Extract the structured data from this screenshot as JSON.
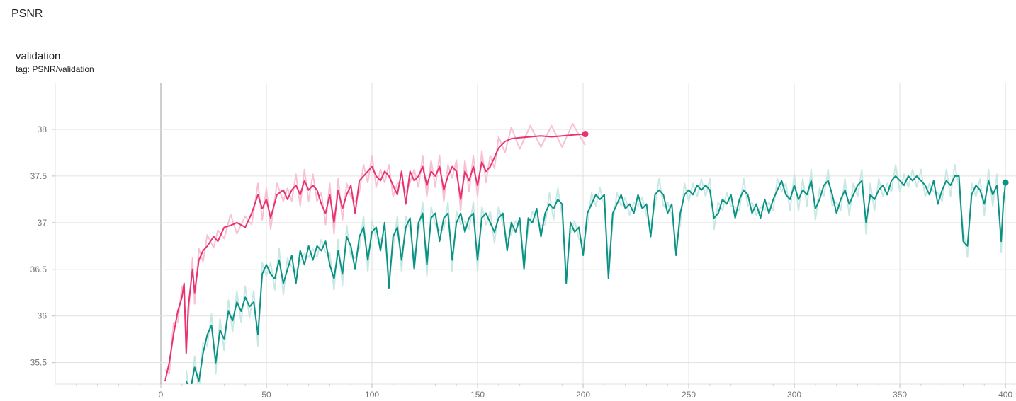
{
  "section": {
    "title": "PSNR"
  },
  "card": {
    "title": "validation",
    "tag": "tag: PSNR/validation"
  },
  "colors": {
    "run1": "#e8336f",
    "run1_raw": "#f7c1d3",
    "run2": "#0a9384",
    "run2_raw": "#c7e8e3",
    "grid": "#e0e0e0",
    "zero_line": "#9e9e9e"
  },
  "chart_data": {
    "type": "line",
    "title": "validation",
    "subtitle": "tag: PSNR/validation",
    "xlabel": "",
    "ylabel": "",
    "xlim": [
      -50,
      405
    ],
    "ylim": [
      35.27,
      38.5
    ],
    "x_ticks": [
      0,
      50,
      100,
      150,
      200,
      250,
      300,
      350,
      400
    ],
    "y_ticks": [
      35.5,
      36,
      36.5,
      37,
      37.5,
      38
    ],
    "x_tick_labels": [
      "0",
      "50",
      "100",
      "150",
      "200",
      "250",
      "300",
      "350",
      "400"
    ],
    "y_tick_labels": [
      "35.5",
      "36",
      "36.5",
      "37",
      "37.5",
      "38"
    ],
    "grid": true,
    "series": [
      {
        "color": "#e8336f",
        "raw_color": "#f7c1d3",
        "points": [
          [
            2,
            35.3
          ],
          [
            4,
            35.5
          ],
          [
            6,
            35.8
          ],
          [
            8,
            36.05
          ],
          [
            10,
            36.2
          ],
          [
            11,
            36.35
          ],
          [
            12,
            35.6
          ],
          [
            13,
            36.1
          ],
          [
            15,
            36.5
          ],
          [
            16,
            36.25
          ],
          [
            18,
            36.6
          ],
          [
            20,
            36.7
          ],
          [
            22,
            36.75
          ],
          [
            25,
            36.85
          ],
          [
            27,
            36.8
          ],
          [
            30,
            36.95
          ],
          [
            33,
            36.97
          ],
          [
            36,
            37.0
          ],
          [
            40,
            36.95
          ],
          [
            43,
            37.1
          ],
          [
            46,
            37.3
          ],
          [
            48,
            37.15
          ],
          [
            50,
            37.25
          ],
          [
            52,
            37.05
          ],
          [
            55,
            37.3
          ],
          [
            58,
            37.35
          ],
          [
            60,
            37.25
          ],
          [
            62,
            37.35
          ],
          [
            64,
            37.4
          ],
          [
            66,
            37.3
          ],
          [
            68,
            37.45
          ],
          [
            70,
            37.35
          ],
          [
            72,
            37.4
          ],
          [
            74,
            37.35
          ],
          [
            76,
            37.2
          ],
          [
            78,
            37.1
          ],
          [
            80,
            37.3
          ],
          [
            82,
            37.0
          ],
          [
            84,
            37.35
          ],
          [
            86,
            37.15
          ],
          [
            88,
            37.3
          ],
          [
            90,
            37.4
          ],
          [
            92,
            37.1
          ],
          [
            94,
            37.45
          ],
          [
            96,
            37.5
          ],
          [
            98,
            37.55
          ],
          [
            100,
            37.6
          ],
          [
            102,
            37.5
          ],
          [
            104,
            37.45
          ],
          [
            106,
            37.55
          ],
          [
            108,
            37.5
          ],
          [
            110,
            37.4
          ],
          [
            112,
            37.3
          ],
          [
            114,
            37.55
          ],
          [
            116,
            37.2
          ],
          [
            118,
            37.55
          ],
          [
            120,
            37.45
          ],
          [
            122,
            37.5
          ],
          [
            124,
            37.6
          ],
          [
            126,
            37.4
          ],
          [
            128,
            37.55
          ],
          [
            130,
            37.5
          ],
          [
            132,
            37.6
          ],
          [
            134,
            37.35
          ],
          [
            136,
            37.5
          ],
          [
            138,
            37.6
          ],
          [
            140,
            37.55
          ],
          [
            142,
            37.25
          ],
          [
            144,
            37.55
          ],
          [
            146,
            37.45
          ],
          [
            148,
            37.6
          ],
          [
            150,
            37.4
          ],
          [
            152,
            37.65
          ],
          [
            154,
            37.55
          ],
          [
            156,
            37.6
          ],
          [
            158,
            37.7
          ],
          [
            160,
            37.8
          ],
          [
            163,
            37.87
          ],
          [
            166,
            37.9
          ],
          [
            170,
            37.91
          ],
          [
            175,
            37.92
          ],
          [
            180,
            37.93
          ],
          [
            185,
            37.92
          ],
          [
            190,
            37.93
          ],
          [
            195,
            37.94
          ],
          [
            201,
            37.95
          ]
        ]
      },
      {
        "color": "#0a9384",
        "raw_color": "#c7e8e3",
        "points": [
          [
            12,
            35.3
          ],
          [
            14,
            35.2
          ],
          [
            16,
            35.45
          ],
          [
            18,
            35.3
          ],
          [
            20,
            35.6
          ],
          [
            22,
            35.8
          ],
          [
            24,
            35.9
          ],
          [
            26,
            35.5
          ],
          [
            28,
            35.85
          ],
          [
            30,
            35.75
          ],
          [
            32,
            36.05
          ],
          [
            34,
            35.95
          ],
          [
            36,
            36.15
          ],
          [
            38,
            36.05
          ],
          [
            40,
            36.2
          ],
          [
            42,
            36.1
          ],
          [
            44,
            36.15
          ],
          [
            46,
            35.8
          ],
          [
            48,
            36.45
          ],
          [
            50,
            36.55
          ],
          [
            52,
            36.45
          ],
          [
            54,
            36.4
          ],
          [
            56,
            36.6
          ],
          [
            58,
            36.35
          ],
          [
            60,
            36.5
          ],
          [
            62,
            36.65
          ],
          [
            64,
            36.35
          ],
          [
            66,
            36.7
          ],
          [
            68,
            36.55
          ],
          [
            70,
            36.75
          ],
          [
            72,
            36.6
          ],
          [
            74,
            36.75
          ],
          [
            76,
            36.7
          ],
          [
            78,
            36.8
          ],
          [
            80,
            36.55
          ],
          [
            82,
            36.4
          ],
          [
            84,
            36.7
          ],
          [
            86,
            36.45
          ],
          [
            88,
            36.85
          ],
          [
            90,
            36.75
          ],
          [
            92,
            36.5
          ],
          [
            94,
            36.85
          ],
          [
            96,
            36.95
          ],
          [
            98,
            36.6
          ],
          [
            100,
            36.9
          ],
          [
            102,
            36.95
          ],
          [
            104,
            36.7
          ],
          [
            106,
            37.0
          ],
          [
            108,
            36.3
          ],
          [
            110,
            36.85
          ],
          [
            112,
            36.95
          ],
          [
            114,
            36.6
          ],
          [
            116,
            36.95
          ],
          [
            118,
            37.05
          ],
          [
            120,
            36.5
          ],
          [
            122,
            37.0
          ],
          [
            124,
            37.1
          ],
          [
            126,
            36.55
          ],
          [
            128,
            37.05
          ],
          [
            130,
            37.1
          ],
          [
            132,
            36.8
          ],
          [
            134,
            37.05
          ],
          [
            136,
            37.1
          ],
          [
            138,
            36.6
          ],
          [
            140,
            37.0
          ],
          [
            142,
            37.1
          ],
          [
            144,
            36.9
          ],
          [
            146,
            37.05
          ],
          [
            148,
            37.1
          ],
          [
            150,
            36.6
          ],
          [
            152,
            37.05
          ],
          [
            154,
            37.1
          ],
          [
            156,
            37.0
          ],
          [
            158,
            36.9
          ],
          [
            160,
            37.05
          ],
          [
            162,
            37.1
          ],
          [
            164,
            36.7
          ],
          [
            166,
            37.0
          ],
          [
            168,
            36.9
          ],
          [
            170,
            37.05
          ],
          [
            172,
            36.5
          ],
          [
            174,
            37.05
          ],
          [
            176,
            37.0
          ],
          [
            178,
            37.15
          ],
          [
            180,
            36.85
          ],
          [
            182,
            37.1
          ],
          [
            184,
            37.2
          ],
          [
            186,
            37.15
          ],
          [
            188,
            37.25
          ],
          [
            190,
            37.2
          ],
          [
            192,
            36.35
          ],
          [
            194,
            37.0
          ],
          [
            196,
            36.9
          ],
          [
            198,
            36.95
          ],
          [
            200,
            36.65
          ],
          [
            202,
            37.1
          ],
          [
            204,
            37.2
          ],
          [
            206,
            37.3
          ],
          [
            208,
            37.25
          ],
          [
            210,
            37.3
          ],
          [
            212,
            36.4
          ],
          [
            214,
            37.1
          ],
          [
            216,
            37.2
          ],
          [
            218,
            37.3
          ],
          [
            220,
            37.15
          ],
          [
            222,
            37.2
          ],
          [
            224,
            37.1
          ],
          [
            226,
            37.3
          ],
          [
            228,
            37.15
          ],
          [
            230,
            37.2
          ],
          [
            232,
            36.85
          ],
          [
            234,
            37.3
          ],
          [
            236,
            37.35
          ],
          [
            238,
            37.3
          ],
          [
            240,
            37.1
          ],
          [
            242,
            37.2
          ],
          [
            244,
            36.65
          ],
          [
            246,
            37.1
          ],
          [
            248,
            37.3
          ],
          [
            250,
            37.35
          ],
          [
            252,
            37.3
          ],
          [
            254,
            37.4
          ],
          [
            256,
            37.35
          ],
          [
            258,
            37.4
          ],
          [
            260,
            37.35
          ],
          [
            262,
            37.05
          ],
          [
            264,
            37.1
          ],
          [
            266,
            37.25
          ],
          [
            268,
            37.2
          ],
          [
            270,
            37.3
          ],
          [
            272,
            37.05
          ],
          [
            274,
            37.25
          ],
          [
            276,
            37.35
          ],
          [
            278,
            37.3
          ],
          [
            280,
            37.1
          ],
          [
            282,
            37.2
          ],
          [
            284,
            37.05
          ],
          [
            286,
            37.25
          ],
          [
            288,
            37.1
          ],
          [
            290,
            37.25
          ],
          [
            292,
            37.35
          ],
          [
            294,
            37.45
          ],
          [
            296,
            37.3
          ],
          [
            298,
            37.25
          ],
          [
            300,
            37.4
          ],
          [
            302,
            37.25
          ],
          [
            304,
            37.35
          ],
          [
            306,
            37.3
          ],
          [
            308,
            37.45
          ],
          [
            310,
            37.15
          ],
          [
            312,
            37.25
          ],
          [
            314,
            37.4
          ],
          [
            316,
            37.45
          ],
          [
            318,
            37.3
          ],
          [
            320,
            37.1
          ],
          [
            322,
            37.25
          ],
          [
            324,
            37.35
          ],
          [
            326,
            37.2
          ],
          [
            328,
            37.3
          ],
          [
            330,
            37.4
          ],
          [
            332,
            37.45
          ],
          [
            334,
            37.0
          ],
          [
            336,
            37.3
          ],
          [
            338,
            37.25
          ],
          [
            340,
            37.35
          ],
          [
            342,
            37.4
          ],
          [
            344,
            37.3
          ],
          [
            346,
            37.45
          ],
          [
            348,
            37.5
          ],
          [
            350,
            37.45
          ],
          [
            352,
            37.4
          ],
          [
            354,
            37.5
          ],
          [
            356,
            37.45
          ],
          [
            358,
            37.5
          ],
          [
            360,
            37.45
          ],
          [
            362,
            37.4
          ],
          [
            364,
            37.3
          ],
          [
            366,
            37.45
          ],
          [
            368,
            37.2
          ],
          [
            370,
            37.35
          ],
          [
            372,
            37.45
          ],
          [
            374,
            37.4
          ],
          [
            376,
            37.5
          ],
          [
            378,
            37.5
          ],
          [
            380,
            36.8
          ],
          [
            382,
            36.75
          ],
          [
            384,
            37.3
          ],
          [
            386,
            37.4
          ],
          [
            388,
            37.35
          ],
          [
            390,
            37.2
          ],
          [
            392,
            37.45
          ],
          [
            394,
            37.3
          ],
          [
            396,
            37.4
          ],
          [
            398,
            36.8
          ],
          [
            399,
            37.2
          ],
          [
            400,
            37.43
          ]
        ]
      }
    ]
  }
}
